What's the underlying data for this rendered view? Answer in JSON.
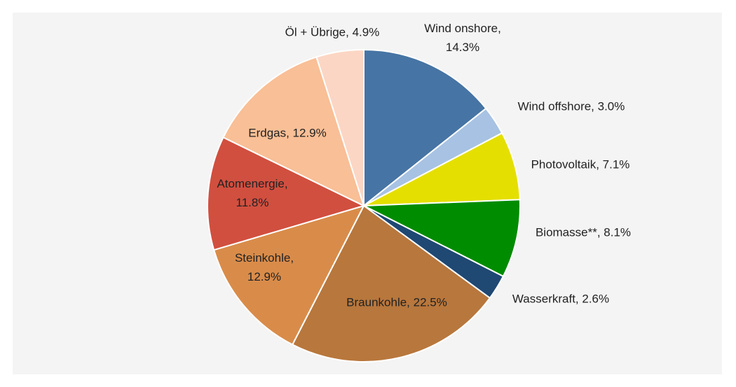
{
  "chart_data": {
    "type": "pie",
    "labels": [
      "Wind onshore, 14.3%",
      "Wind offshore, 3.0%",
      "Photovoltaik, 7.1%",
      "Biomasse**, 8.1%",
      "Wasserkraft, 2.6%",
      "Braunkohle, 22.5%",
      "Steinkohle, 12.9%",
      "Atomenergie, 11.8%",
      "Erdgas, 12.9%",
      "Öl + Übrige, 4.9%"
    ],
    "values": [
      14.3,
      3.0,
      7.1,
      8.1,
      2.6,
      22.5,
      12.9,
      11.8,
      12.9,
      4.9
    ],
    "colors": [
      "#4674a4",
      "#a7c2e3",
      "#e5df00",
      "#008c00",
      "#1f4873",
      "#b8773c",
      "#d98c4a",
      "#d14f3f",
      "#f9bf96",
      "#fcd6c4"
    ]
  }
}
